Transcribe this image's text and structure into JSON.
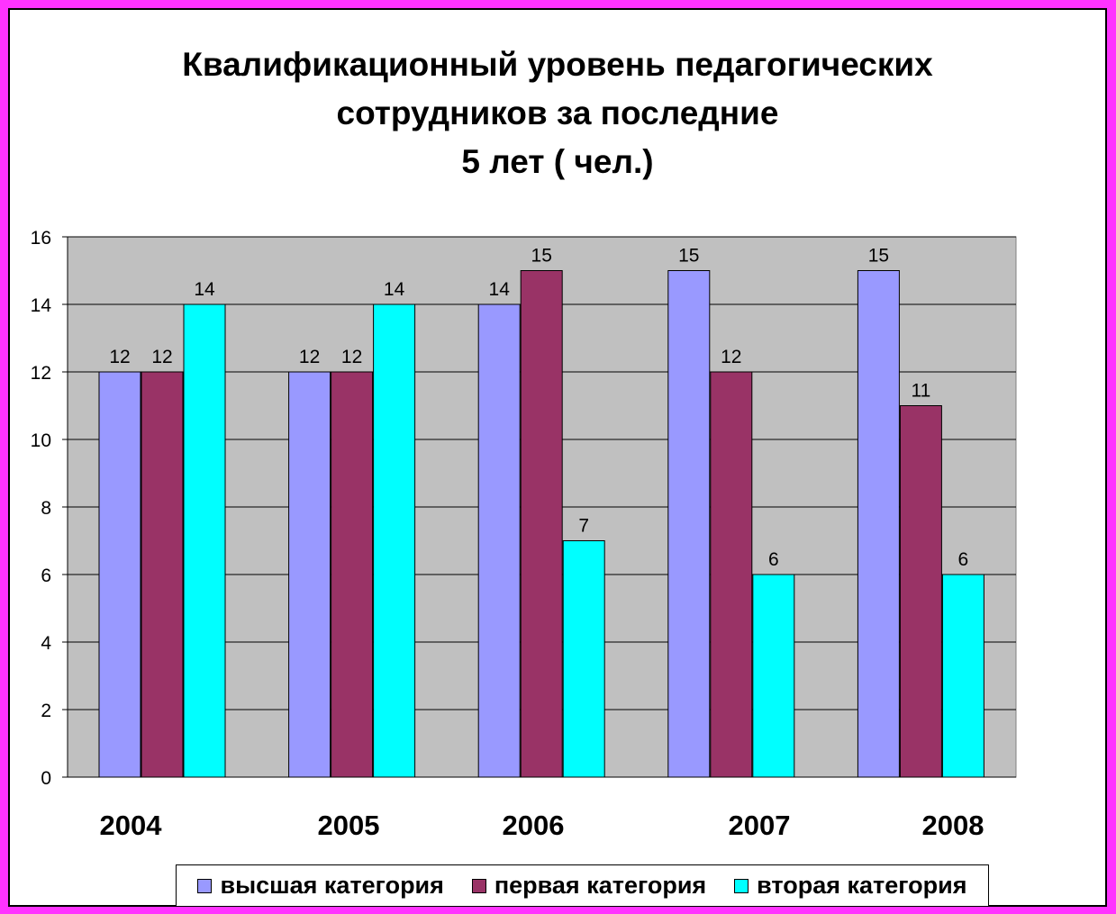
{
  "chart_data": {
    "type": "bar",
    "title": "Квалификационный уровень педагогических сотрудников за последние 5 лет ( чел.)",
    "title_lines": [
      "Квалификационный уровень педагогических",
      "сотрудников за последние",
      "5 лет ( чел.)"
    ],
    "categories": [
      "2004",
      "2005",
      "2006",
      "2007",
      "2008"
    ],
    "series": [
      {
        "name": "высшая категория",
        "color": "#9999ff",
        "values": [
          12,
          12,
          14,
          15,
          15
        ]
      },
      {
        "name": "первая категория",
        "color": "#993366",
        "values": [
          12,
          12,
          15,
          12,
          11
        ]
      },
      {
        "name": "вторая категория",
        "color": "#00ffff",
        "values": [
          14,
          14,
          7,
          6,
          6
        ]
      }
    ],
    "ylim": [
      0,
      16
    ],
    "yticks": [
      0,
      2,
      4,
      6,
      8,
      10,
      12,
      14,
      16
    ],
    "grid": true,
    "data_labels": true,
    "legend_position": "bottom",
    "plot_background": "#c0c0c0",
    "page_border_color": "#ff33ff"
  }
}
